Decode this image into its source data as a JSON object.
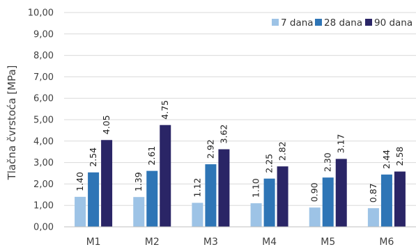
{
  "chart_data": {
    "type": "bar",
    "categories": [
      "M1",
      "M2",
      "M3",
      "M4",
      "M5",
      "M6"
    ],
    "series": [
      {
        "name": "7 dana",
        "color": "#9DC3E6",
        "values": [
          1.4,
          1.39,
          1.12,
          1.1,
          0.9,
          0.87
        ],
        "labels": [
          "1.40",
          "1.39",
          "1.12",
          "1.10",
          "0.90",
          "0.87"
        ]
      },
      {
        "name": "28 dana",
        "color": "#2E75B6",
        "values": [
          2.54,
          2.61,
          2.92,
          2.25,
          2.3,
          2.44
        ],
        "labels": [
          "2.54",
          "2.61",
          "2.92",
          "2.25",
          "2.30",
          "2.44"
        ]
      },
      {
        "name": "90 dana",
        "color": "#2A2566",
        "values": [
          4.05,
          4.75,
          3.62,
          2.82,
          3.17,
          2.58
        ],
        "labels": [
          "4.05",
          "4.75",
          "3.62",
          "2.82",
          "3.17",
          "2.58"
        ]
      }
    ],
    "ylabel": "Tlačna čvrstoća [MPa]",
    "xlabel": "",
    "ylim": [
      0,
      10
    ],
    "yticks": [
      "0,00",
      "1,00",
      "2,00",
      "3,00",
      "4,00",
      "5,00",
      "6,00",
      "7,00",
      "8,00",
      "9,00",
      "10,00"
    ],
    "grid": true,
    "legend_position": "top-right"
  }
}
